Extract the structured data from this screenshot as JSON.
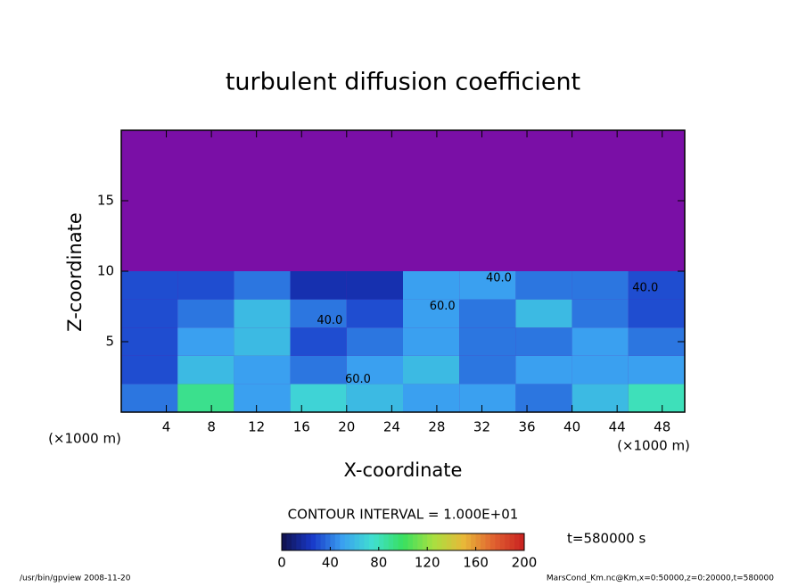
{
  "chart_data": {
    "type": "contour",
    "title": "turbulent diffusion coefficient",
    "x_label": "X-coordinate",
    "y_label": "Z-coordinate",
    "x_unit_left": "(×1000 m)",
    "x_unit_right": "(×1000 m)",
    "contour_interval": "CONTOUR INTERVAL = 1.000E+01",
    "time_label": "t=580000 s",
    "footer_left": "/usr/bin/gpview   2008-11-20",
    "footer_right": "MarsCond_Km.nc@Km,x=0:50000,z=0:20000,t=580000",
    "x": [
      2.5,
      7.5,
      12.5,
      17.5,
      22.5,
      27.5,
      32.5,
      37.5,
      42.5,
      47.5
    ],
    "z": [
      1,
      3,
      5,
      7,
      9,
      11,
      13,
      15,
      17,
      19
    ],
    "values": [
      [
        40,
        90,
        50,
        70,
        60,
        50,
        50,
        40,
        60,
        80
      ],
      [
        30,
        60,
        50,
        40,
        50,
        60,
        40,
        50,
        50,
        50
      ],
      [
        30,
        50,
        60,
        30,
        40,
        50,
        40,
        40,
        50,
        40
      ],
      [
        30,
        40,
        60,
        40,
        30,
        50,
        40,
        60,
        40,
        30
      ],
      [
        30,
        30,
        40,
        20,
        20,
        50,
        50,
        40,
        40,
        30
      ],
      [
        null,
        null,
        null,
        null,
        null,
        null,
        null,
        null,
        null,
        null
      ],
      [
        null,
        null,
        null,
        null,
        null,
        null,
        null,
        null,
        null,
        null
      ],
      [
        null,
        null,
        null,
        null,
        null,
        null,
        null,
        null,
        null,
        null
      ],
      [
        null,
        null,
        null,
        null,
        null,
        null,
        null,
        null,
        null,
        null
      ],
      [
        null,
        null,
        null,
        null,
        null,
        null,
        null,
        null,
        null,
        null
      ]
    ],
    "contour_labels": [
      {
        "x": 18.5,
        "z": 6.5,
        "label": "40.0"
      },
      {
        "x": 21,
        "z": 2.3,
        "label": "60.0"
      },
      {
        "x": 33.5,
        "z": 9.5,
        "label": "40.0"
      },
      {
        "x": 28.5,
        "z": 7.5,
        "label": "60.0"
      },
      {
        "x": 46.5,
        "z": 8.8,
        "label": "40.0"
      }
    ],
    "missing_color": "#7a0fa6",
    "colorscale": [
      "#10104a",
      "#1838c8",
      "#3aa0f0",
      "#40e0d0",
      "#38e060",
      "#a8e040",
      "#e8b838",
      "#e06030",
      "#c82020"
    ],
    "clim": [
      0,
      200
    ],
    "cbar_ticks": [
      0,
      40,
      80,
      120,
      160,
      200
    ],
    "xlim": [
      0,
      50
    ],
    "ylim": [
      0,
      20
    ],
    "xticks": [
      4,
      8,
      12,
      16,
      20,
      24,
      28,
      32,
      36,
      40,
      44,
      48
    ],
    "yticks": [
      5,
      10,
      15
    ]
  }
}
